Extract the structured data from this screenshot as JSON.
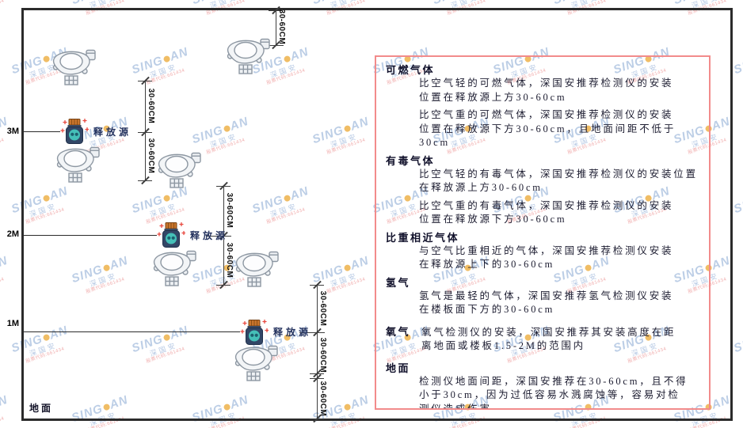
{
  "diagram": {
    "height_labels": [
      "3M",
      "2M",
      "1M"
    ],
    "floor_label": "地面",
    "release_source_label": "释放源",
    "dim_label": "30-60CM"
  },
  "panel": {
    "border_color": "#f28b8b",
    "sections": [
      {
        "heading": "可燃气体",
        "inline": false,
        "paragraphs": [
          "比空气轻的可燃气体，深国安推荐检测仪的安装\n位置在释放源上方30-60cm",
          "比空气重的可燃气体，深国安推荐检测仪的安装\n位置在释放源下方30-60cm，且地面间距不低于\n30cm"
        ]
      },
      {
        "heading": "有毒气体",
        "inline": false,
        "paragraphs": [
          "比空气轻的有毒气体，深国安推荐检测仪的安装位置\n在释放源上方30-60cm",
          "比空气重的有毒气体，深国安推荐检测仪的安装\n位置在释放源下方30-60cm"
        ]
      },
      {
        "heading": "比重相近气体",
        "inline": false,
        "paragraphs": [
          "与空气比重相近的气体，深国安推荐检测仪安装\n在释放源上下的30-60cm"
        ]
      },
      {
        "heading": "氢气",
        "inline": false,
        "paragraphs": [
          "氢气是最轻的气体，深国安推荐氢气检测仪安装\n在楼板面下方的30-60cm"
        ]
      },
      {
        "heading": "氧气",
        "inline": true,
        "paragraphs": [
          "氧气检测仪的安装，深国安推荐其安装高度在距\n离地面或楼板1.5-2M的范围内"
        ]
      },
      {
        "heading": "地面",
        "inline": false,
        "paragraphs": [
          "检测仪地面间距，深国安推荐在30-60cm，且不得\n小于30cm，因为过低容易水溅腐蚀等，容易对检\n测仪造成伤害"
        ]
      }
    ]
  },
  "watermark": {
    "logo_prefix": "SING",
    "logo_suffix": "AN",
    "company": "深国安",
    "stock_code": "股票代码:661434"
  },
  "colors": {
    "panel_border": "#f28b8b",
    "watermark_blue": "#7a9dcd",
    "release_source_body": "#324666",
    "release_source_lid": "#c8742c",
    "release_source_emblem": "#45c0b8",
    "spark_red": "#e8483f"
  }
}
